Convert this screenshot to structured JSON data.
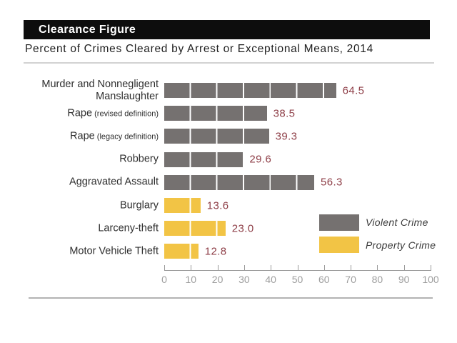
{
  "header": {
    "title": "Clearance Figure",
    "subtitle": "Percent of Crimes Cleared by Arrest or Exceptional Means, 2014"
  },
  "chart_data": {
    "type": "bar",
    "orientation": "horizontal",
    "title": "Clearance Figure",
    "subtitle": "Percent of Crimes Cleared by Arrest or Exceptional Means, 2014",
    "xlabel": "",
    "ylabel": "",
    "xlim": [
      0,
      100
    ],
    "x_ticks": [
      "0",
      "10",
      "20",
      "30",
      "40",
      "50",
      "60",
      "70",
      "80",
      "90",
      "100"
    ],
    "grid": "white vertical gridlines overlay bars every 10 units",
    "legend_position": "right-middle",
    "value_label_color": "#8e3e47",
    "items": [
      {
        "label": "Murder and Nonnegligent Manslaughter",
        "label_suffix": "",
        "value": 64.5,
        "value_label": "64.5",
        "series": "violent"
      },
      {
        "label": "Rape",
        "label_suffix": "(revised definition)",
        "value": 38.5,
        "value_label": "38.5",
        "series": "violent"
      },
      {
        "label": "Rape",
        "label_suffix": "(legacy definition)",
        "value": 39.3,
        "value_label": "39.3",
        "series": "violent"
      },
      {
        "label": "Robbery",
        "label_suffix": "",
        "value": 29.6,
        "value_label": "29.6",
        "series": "violent"
      },
      {
        "label": "Aggravated Assault",
        "label_suffix": "",
        "value": 56.3,
        "value_label": "56.3",
        "series": "violent"
      },
      {
        "label": "Burglary",
        "label_suffix": "",
        "value": 13.6,
        "value_label": "13.6",
        "series": "property"
      },
      {
        "label": "Larceny-theft",
        "label_suffix": "",
        "value": 23.0,
        "value_label": "23.0",
        "series": "property"
      },
      {
        "label": "Motor Vehicle Theft",
        "label_suffix": "",
        "value": 12.8,
        "value_label": "12.8",
        "series": "property"
      }
    ],
    "series": [
      {
        "id": "violent",
        "name": "Violent Crime",
        "color": "#757170"
      },
      {
        "id": "property",
        "name": "Property Crime",
        "color": "#f2c445"
      }
    ]
  }
}
